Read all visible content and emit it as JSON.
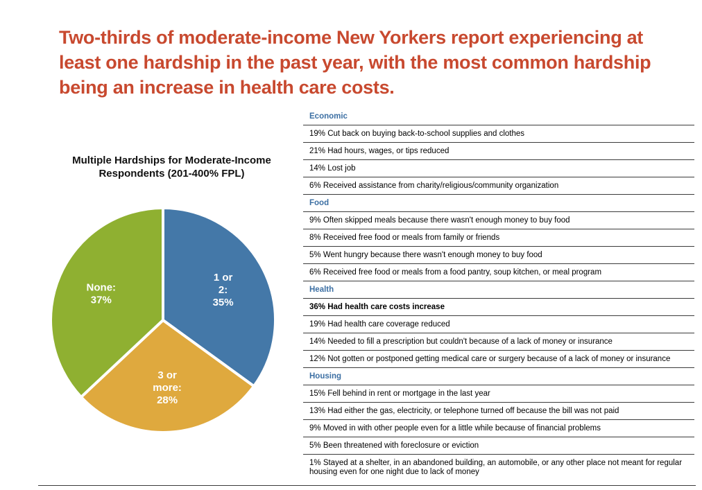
{
  "headline": "Two-thirds of moderate-income New Yorkers report experiencing at least one hardship in the past year, with the most common hardship being an increase in health care costs.",
  "chart_data": {
    "type": "pie",
    "title": "Multiple Hardships for Moderate-Income Respondents (201-400% FPL)",
    "slices": [
      {
        "label": "1 or 2:",
        "value": 35,
        "display": "35%",
        "color": "#4478a8"
      },
      {
        "label": "3 or more:",
        "value": 28,
        "display": "28%",
        "color": "#dfa93e"
      },
      {
        "label": "None:",
        "value": 37,
        "display": "37%",
        "color": "#8fb031"
      }
    ]
  },
  "table": {
    "sections": [
      {
        "category": "Economic",
        "items": [
          {
            "text": "19% Cut back on buying back-to-school supplies and clothes"
          },
          {
            "text": "21% Had hours, wages, or tips reduced"
          },
          {
            "text": "14% Lost job"
          },
          {
            "text": "6% Received assistance from charity/religious/community organization"
          }
        ]
      },
      {
        "category": "Food",
        "items": [
          {
            "text": "9% Often skipped meals because there wasn't enough money to buy food"
          },
          {
            "text": "8% Received free food or meals from family or friends"
          },
          {
            "text": "5% Went hungry because there wasn't enough money to buy food"
          },
          {
            "text": "6% Received free food or meals from a food pantry, soup kitchen, or meal program"
          }
        ]
      },
      {
        "category": "Health",
        "items": [
          {
            "text": "36% Had health care costs increase",
            "bold": true
          },
          {
            "text": "19% Had health care coverage reduced"
          },
          {
            "text": "14% Needed to fill a prescription but couldn't because of a lack of money or insurance"
          },
          {
            "text": "12% Not gotten or postponed getting medical care or surgery because of a lack of money or insurance"
          }
        ]
      },
      {
        "category": "Housing",
        "items": [
          {
            "text": "15% Fell behind in rent or mortgage in the last year"
          },
          {
            "text": "13% Had either the gas, electricity, or telephone turned off because the bill was not paid"
          },
          {
            "text": "9% Moved in with other people even for a little while because of financial problems"
          },
          {
            "text": "5% Been threatened with foreclosure or eviction"
          },
          {
            "text": "1% Stayed at a shelter, in an abandoned building, an automobile, or any other place not meant for regular housing even for one night due to lack of money"
          }
        ]
      }
    ]
  }
}
